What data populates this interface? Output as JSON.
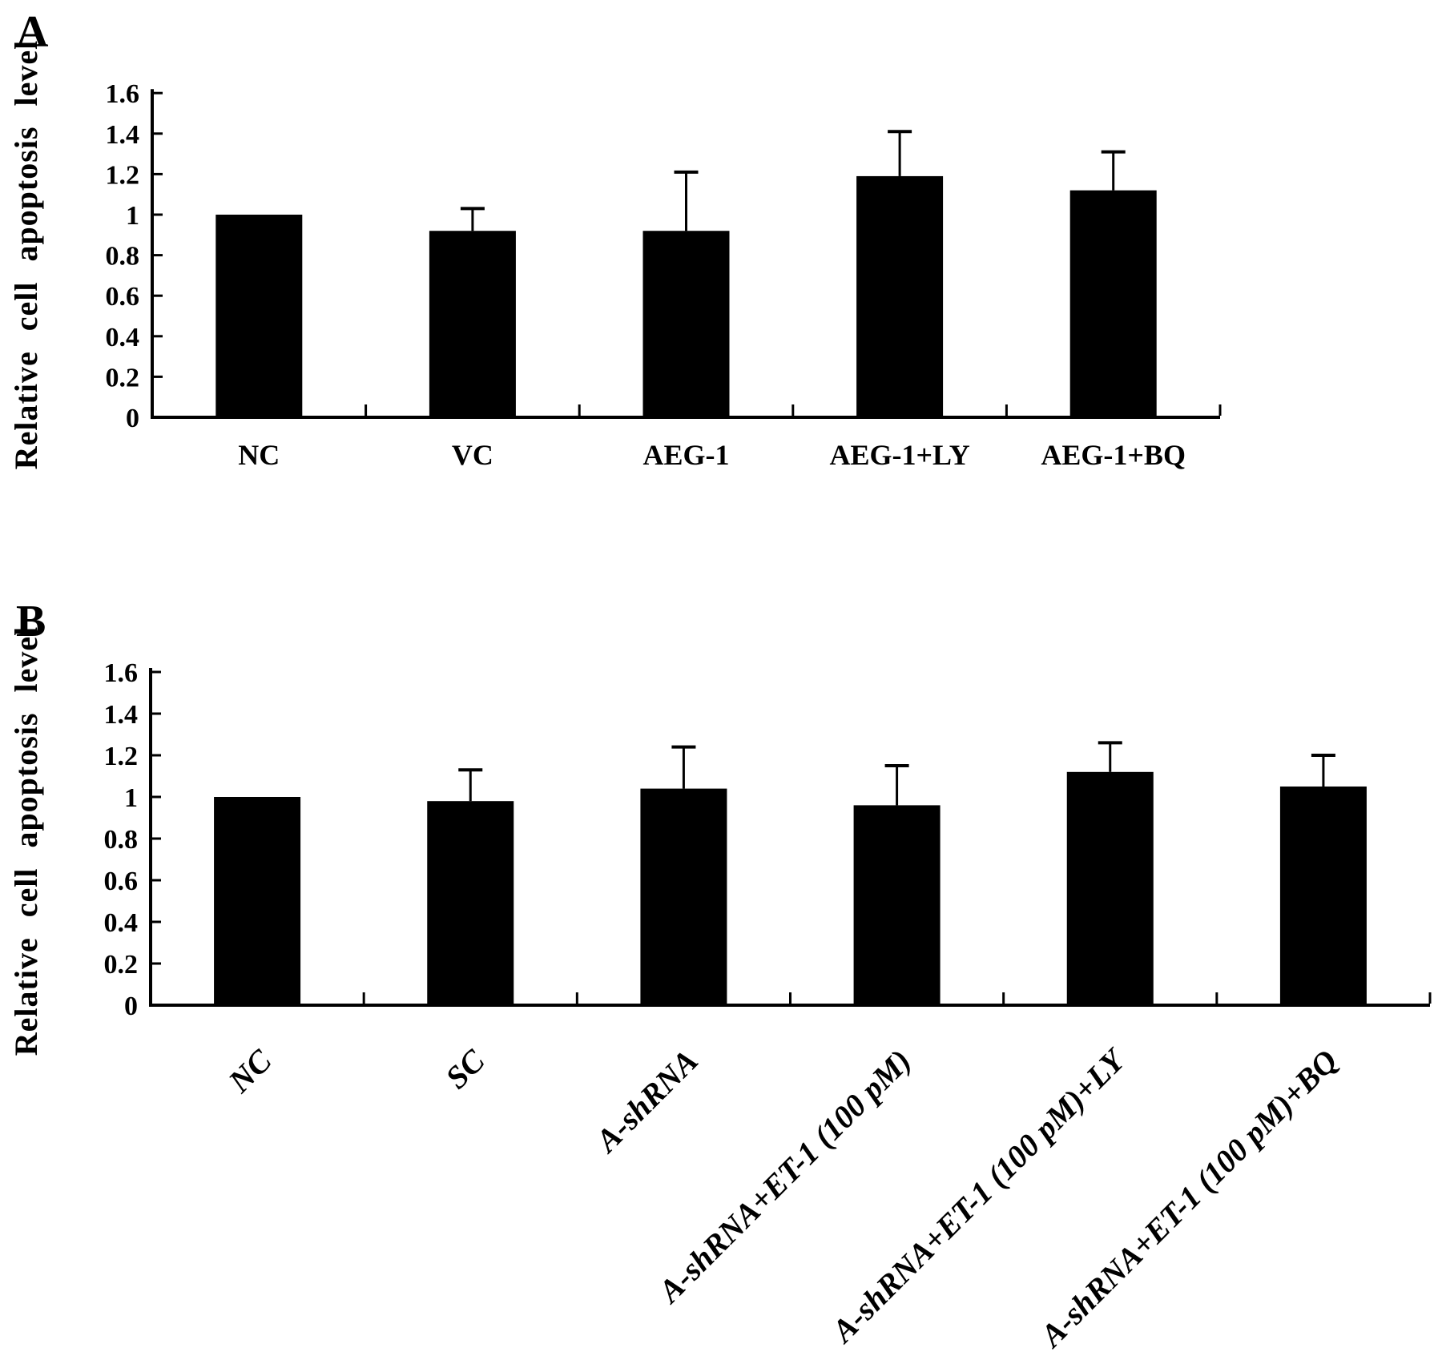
{
  "figure": {
    "background": "#ffffff",
    "bar_color": "#000000",
    "axis_color": "#000000"
  },
  "chart_data": [
    {
      "type": "bar",
      "panel": "A",
      "title": "",
      "xlabel": "",
      "ylabel": "Relative cell apoptosis level",
      "ylim": [
        0,
        1.6
      ],
      "yticks": [
        0,
        0.2,
        0.4,
        0.6,
        0.8,
        1,
        1.2,
        1.4,
        1.6
      ],
      "grid": false,
      "legend": "none",
      "categories": [
        "NC",
        "VC",
        "AEG-1",
        "AEG-1+LY",
        "AEG-1+BQ"
      ],
      "values": [
        1.0,
        0.92,
        0.92,
        1.19,
        1.12
      ],
      "errors_plus": [
        0,
        0.11,
        0.29,
        0.22,
        0.19
      ],
      "bar_color": "#000000",
      "x_label_rotation": 0
    },
    {
      "type": "bar",
      "panel": "B",
      "title": "",
      "xlabel": "",
      "ylabel": "Relative cell apoptosis level",
      "ylim": [
        0,
        1.6
      ],
      "yticks": [
        0,
        0.2,
        0.4,
        0.6,
        0.8,
        1,
        1.2,
        1.4,
        1.6
      ],
      "grid": false,
      "legend": "none",
      "categories": [
        "NC",
        "SC",
        "A-shRNA",
        "A-shRNA+ET-1 (100 pM)",
        "A-shRNA+ET-1 (100 pM)+LY",
        "A-shRNA+ET-1 (100 pM)+BQ"
      ],
      "values": [
        1.0,
        0.98,
        1.04,
        0.96,
        1.12,
        1.05
      ],
      "errors_plus": [
        0,
        0.15,
        0.2,
        0.19,
        0.14,
        0.15
      ],
      "bar_color": "#000000",
      "x_label_rotation": -45
    }
  ]
}
